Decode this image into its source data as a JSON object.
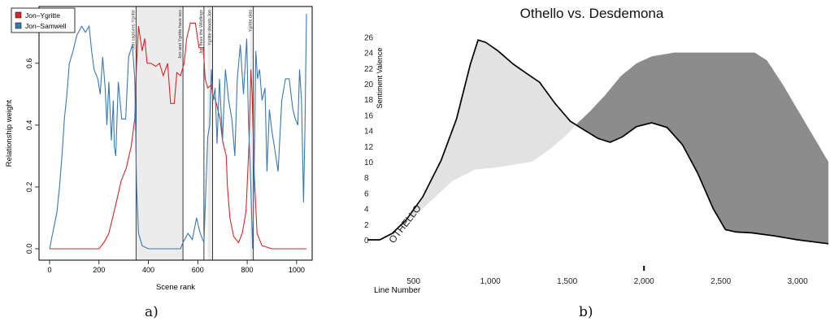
{
  "captions": {
    "a": "a)",
    "b": "b)"
  },
  "chart_data": [
    {
      "type": "line",
      "xlabel": "Scene rank",
      "ylabel": "Relationship weight",
      "xlim": [
        0,
        1040
      ],
      "ylim": [
        0,
        0.76
      ],
      "x_ticks": [
        0,
        200,
        400,
        600,
        800,
        1000
      ],
      "y_ticks": [
        0.0,
        0.2,
        0.4,
        0.6
      ],
      "legend": {
        "placement": "top-left"
      },
      "shaded_intervals": [
        [
          350,
          540
        ],
        [
          640,
          660
        ],
        [
          812,
          826
        ]
      ],
      "events": [
        {
          "x": 350,
          "label": "Jon captures Ygritte"
        },
        {
          "x": 540,
          "label": "Jon and Ygritte have sex"
        },
        {
          "x": 625,
          "label": "Jon flees the Wildlings"
        },
        {
          "x": 660,
          "label": "Ygritte shoots Jon"
        },
        {
          "x": 825,
          "label": "Ygritte dies"
        }
      ],
      "series": [
        {
          "name": "Jon–Ygritte",
          "color": "#d62728",
          "points": [
            [
              0,
              0
            ],
            [
              200,
              0
            ],
            [
              220,
              0.02
            ],
            [
              240,
              0.05
            ],
            [
              255,
              0.1
            ],
            [
              270,
              0.15
            ],
            [
              290,
              0.22
            ],
            [
              310,
              0.26
            ],
            [
              330,
              0.33
            ],
            [
              345,
              0.42
            ],
            [
              352,
              0.6
            ],
            [
              360,
              0.72
            ],
            [
              375,
              0.64
            ],
            [
              385,
              0.68
            ],
            [
              395,
              0.6
            ],
            [
              410,
              0.6
            ],
            [
              430,
              0.59
            ],
            [
              445,
              0.6
            ],
            [
              460,
              0.56
            ],
            [
              478,
              0.6
            ],
            [
              490,
              0.47
            ],
            [
              505,
              0.47
            ],
            [
              515,
              0.57
            ],
            [
              530,
              0.56
            ],
            [
              545,
              0.6
            ],
            [
              555,
              0.68
            ],
            [
              570,
              0.73
            ],
            [
              590,
              0.73
            ],
            [
              605,
              0.65
            ],
            [
              622,
              0.65
            ],
            [
              630,
              0.55
            ],
            [
              640,
              0.52
            ],
            [
              655,
              0.53
            ],
            [
              660,
              0.5
            ],
            [
              672,
              0.48
            ],
            [
              690,
              0.42
            ],
            [
              700,
              0.35
            ],
            [
              715,
              0.3
            ],
            [
              720,
              0.2
            ],
            [
              730,
              0.1
            ],
            [
              745,
              0.04
            ],
            [
              765,
              0.02
            ],
            [
              780,
              0.05
            ],
            [
              795,
              0.12
            ],
            [
              808,
              0.35
            ],
            [
              815,
              0.58
            ],
            [
              820,
              0.5
            ],
            [
              828,
              0.25
            ],
            [
              840,
              0.05
            ],
            [
              860,
              0.01
            ],
            [
              900,
              0
            ],
            [
              1040,
              0
            ]
          ]
        },
        {
          "name": "Jon–Samwell",
          "color": "#3a78b0",
          "points": [
            [
              0,
              0
            ],
            [
              10,
              0.04
            ],
            [
              20,
              0.08
            ],
            [
              30,
              0.12
            ],
            [
              40,
              0.2
            ],
            [
              50,
              0.3
            ],
            [
              60,
              0.42
            ],
            [
              70,
              0.5
            ],
            [
              80,
              0.6
            ],
            [
              95,
              0.64
            ],
            [
              110,
              0.69
            ],
            [
              130,
              0.72
            ],
            [
              145,
              0.7
            ],
            [
              160,
              0.72
            ],
            [
              170,
              0.64
            ],
            [
              180,
              0.58
            ],
            [
              195,
              0.55
            ],
            [
              205,
              0.5
            ],
            [
              215,
              0.62
            ],
            [
              225,
              0.52
            ],
            [
              232,
              0.4
            ],
            [
              240,
              0.54
            ],
            [
              250,
              0.35
            ],
            [
              258,
              0.48
            ],
            [
              262,
              0.33
            ],
            [
              268,
              0.3
            ],
            [
              278,
              0.54
            ],
            [
              292,
              0.42
            ],
            [
              308,
              0.42
            ],
            [
              320,
              0.62
            ],
            [
              335,
              0.66
            ],
            [
              345,
              0.55
            ],
            [
              352,
              0.2
            ],
            [
              360,
              0.05
            ],
            [
              375,
              0.01
            ],
            [
              400,
              0
            ],
            [
              530,
              0
            ],
            [
              540,
              0.02
            ],
            [
              560,
              0.05
            ],
            [
              578,
              0.03
            ],
            [
              595,
              0.1
            ],
            [
              610,
              0.05
            ],
            [
              625,
              0.02
            ],
            [
              640,
              0.36
            ],
            [
              648,
              0.4
            ],
            [
              655,
              0.58
            ],
            [
              662,
              0.48
            ],
            [
              670,
              0.52
            ],
            [
              678,
              0.34
            ],
            [
              688,
              0.55
            ],
            [
              700,
              0.35
            ],
            [
              712,
              0.58
            ],
            [
              725,
              0.48
            ],
            [
              738,
              0.42
            ],
            [
              750,
              0.3
            ],
            [
              760,
              0.55
            ],
            [
              772,
              0.66
            ],
            [
              785,
              0.5
            ],
            [
              798,
              0.68
            ],
            [
              805,
              0.42
            ],
            [
              815,
              0.2
            ],
            [
              822,
              0.0
            ],
            [
              828,
              0.25
            ],
            [
              835,
              0.64
            ],
            [
              842,
              0.55
            ],
            [
              850,
              0.58
            ],
            [
              860,
              0.48
            ],
            [
              872,
              0.52
            ],
            [
              880,
              0.25
            ],
            [
              890,
              0.45
            ],
            [
              900,
              0.38
            ],
            [
              912,
              0.32
            ],
            [
              925,
              0.25
            ],
            [
              940,
              0.48
            ],
            [
              955,
              0.55
            ],
            [
              970,
              0.55
            ],
            [
              985,
              0.45
            ],
            [
              995,
              0.42
            ],
            [
              1005,
              0.4
            ],
            [
              1012,
              0.58
            ],
            [
              1020,
              0.48
            ],
            [
              1028,
              0.15
            ],
            [
              1034,
              0.4
            ],
            [
              1040,
              0.76
            ]
          ]
        }
      ]
    },
    {
      "type": "area",
      "title": "Othello vs. Desdemona",
      "xlabel": "Line Number",
      "ylabel": "Sentiment Valence",
      "xlim": [
        200,
        3200
      ],
      "ylim": [
        -1,
        26.5
      ],
      "x_ticks": [
        500,
        1000,
        1500,
        2000,
        2500,
        3000
      ],
      "x_tick_labels": [
        "500",
        "1,000",
        "1,500",
        "2,000",
        "2,500",
        "3,000"
      ],
      "y_ticks": [
        0,
        2,
        4,
        6,
        8,
        10,
        12,
        14,
        16,
        18,
        20,
        22,
        24,
        26
      ],
      "series": [
        {
          "name": "OTHELLO",
          "color": "#000000",
          "points": [
            [
              200,
              0
            ],
            [
              280,
              0
            ],
            [
              360,
              0.8
            ],
            [
              450,
              2.5
            ],
            [
              560,
              5.5
            ],
            [
              680,
              10.2
            ],
            [
              780,
              15.5
            ],
            [
              870,
              22.5
            ],
            [
              920,
              25.6
            ],
            [
              970,
              25.3
            ],
            [
              1050,
              24.2
            ],
            [
              1150,
              22.5
            ],
            [
              1260,
              21
            ],
            [
              1320,
              20.2
            ],
            [
              1420,
              17.5
            ],
            [
              1520,
              15.2
            ],
            [
              1600,
              14.2
            ],
            [
              1700,
              13
            ],
            [
              1780,
              12.5
            ],
            [
              1860,
              13.2
            ],
            [
              1950,
              14.5
            ],
            [
              2050,
              15
            ],
            [
              2150,
              14.4
            ],
            [
              2250,
              12.2
            ],
            [
              2350,
              8.5
            ],
            [
              2450,
              4
            ],
            [
              2530,
              1.3
            ],
            [
              2600,
              1
            ],
            [
              2700,
              0.9
            ],
            [
              2850,
              0.5
            ],
            [
              3000,
              0
            ],
            [
              3200,
              -0.5
            ]
          ]
        },
        {
          "name": "Desdemona",
          "points": [
            [
              400,
              1.5
            ],
            [
              560,
              4
            ],
            [
              750,
              7.5
            ],
            [
              900,
              9
            ],
            [
              1050,
              9.3
            ],
            [
              1270,
              10
            ],
            [
              1380,
              11.5
            ],
            [
              1500,
              13.5
            ],
            [
              1560,
              14.8
            ],
            [
              1650,
              16.5
            ],
            [
              1750,
              18.6
            ],
            [
              1850,
              21
            ],
            [
              1950,
              22.6
            ],
            [
              2050,
              23.5
            ],
            [
              2200,
              24
            ],
            [
              2500,
              24
            ],
            [
              2720,
              24
            ],
            [
              2800,
              23
            ],
            [
              2900,
              20
            ],
            [
              3050,
              15
            ],
            [
              3200,
              10
            ]
          ]
        }
      ]
    }
  ]
}
